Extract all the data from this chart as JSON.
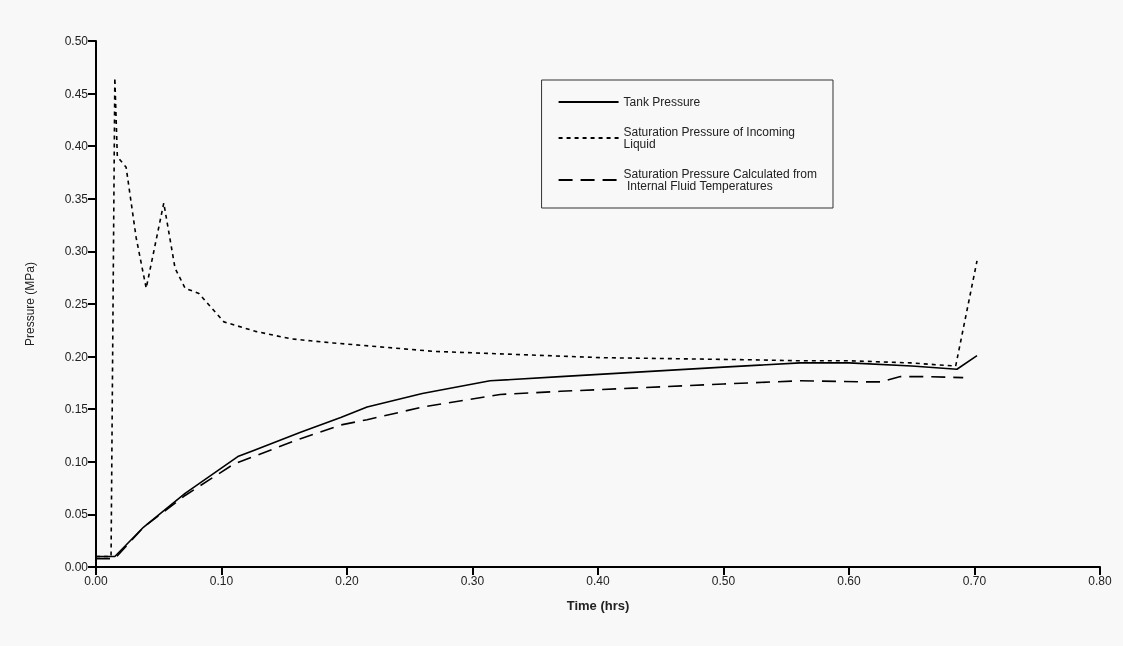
{
  "chart_data": {
    "type": "line",
    "xlabel": "Time (hrs)",
    "ylabel": "Pressure (MPa)",
    "xlim": [
      0,
      0.8
    ],
    "xticks": [
      {
        "value": 0,
        "label": "0.00"
      },
      {
        "value": 0.1,
        "label": "0.10"
      },
      {
        "value": 0.2,
        "label": "0.20"
      },
      {
        "value": 0.3,
        "label": "0.30"
      },
      {
        "value": 0.4,
        "label": "0.40"
      },
      {
        "value": 0.5,
        "label": "0.50"
      },
      {
        "value": 0.6,
        "label": "0.60"
      },
      {
        "value": 0.7,
        "label": "0.70"
      },
      {
        "value": 0.8,
        "label": "0.80"
      }
    ],
    "ylim": [
      0,
      0.5
    ],
    "yticks": [
      {
        "value": 0,
        "label": "0.00"
      },
      0.05,
      {
        "value": 0.1,
        "label": "0.10"
      },
      0.15,
      {
        "value": 0.2,
        "label": "0.20"
      },
      0.25,
      {
        "value": 0.3,
        "label": "0.30"
      },
      0.35,
      {
        "value": 0.4,
        "label": "0.40"
      },
      0.45,
      {
        "value": 0.5,
        "label": "0.50"
      }
    ],
    "grid": false,
    "legend": "top right",
    "marker": "none",
    "series": [
      {
        "name": "Tank Pressure",
        "color": "#000000",
        "line_style": "solid",
        "x": [
          0,
          0.015,
          0.038,
          0.071,
          0.113,
          0.163,
          0.195,
          0.216,
          0.26,
          0.314,
          0.37,
          0.428,
          0.5,
          0.561,
          0.6,
          0.65,
          0.686,
          0.702
        ],
        "values": [
          0.01,
          0.01,
          0.038,
          0.07,
          0.105,
          0.128,
          0.142,
          0.152,
          0.165,
          0.177,
          0.181,
          0.185,
          0.19,
          0.194,
          0.194,
          0.191,
          0.188,
          0.201
        ]
      },
      {
        "name": "Saturation Pressure of Incoming Liquid",
        "color": "#000000",
        "line_style": "dotted",
        "x": [
          0,
          0.012,
          0.015,
          0.017,
          0.024,
          0.032,
          0.04,
          0.054,
          0.063,
          0.071,
          0.082,
          0.102,
          0.127,
          0.155,
          0.171,
          0.189,
          0.269,
          0.402,
          0.52,
          0.561,
          0.601,
          0.649,
          0.685,
          0.702
        ],
        "values": [
          0.01,
          0.01,
          0.465,
          0.39,
          0.38,
          0.313,
          0.265,
          0.346,
          0.284,
          0.265,
          0.26,
          0.233,
          0.224,
          0.217,
          0.215,
          0.213,
          0.205,
          0.199,
          0.197,
          0.196,
          0.196,
          0.194,
          0.191,
          0.291
        ]
      },
      {
        "name": "Saturation Pressure Calculated from Internal Fluid Temperatures",
        "color": "#000000",
        "line_style": "dashed",
        "x": [
          0,
          0.015,
          0.038,
          0.071,
          0.11,
          0.163,
          0.195,
          0.216,
          0.26,
          0.322,
          0.37,
          0.428,
          0.5,
          0.561,
          0.614,
          0.625,
          0.641,
          0.661,
          0.691
        ],
        "values": [
          0.008,
          0.008,
          0.038,
          0.068,
          0.098,
          0.122,
          0.135,
          0.14,
          0.152,
          0.164,
          0.167,
          0.17,
          0.174,
          0.177,
          0.176,
          0.176,
          0.181,
          0.181,
          0.18
        ]
      }
    ]
  }
}
